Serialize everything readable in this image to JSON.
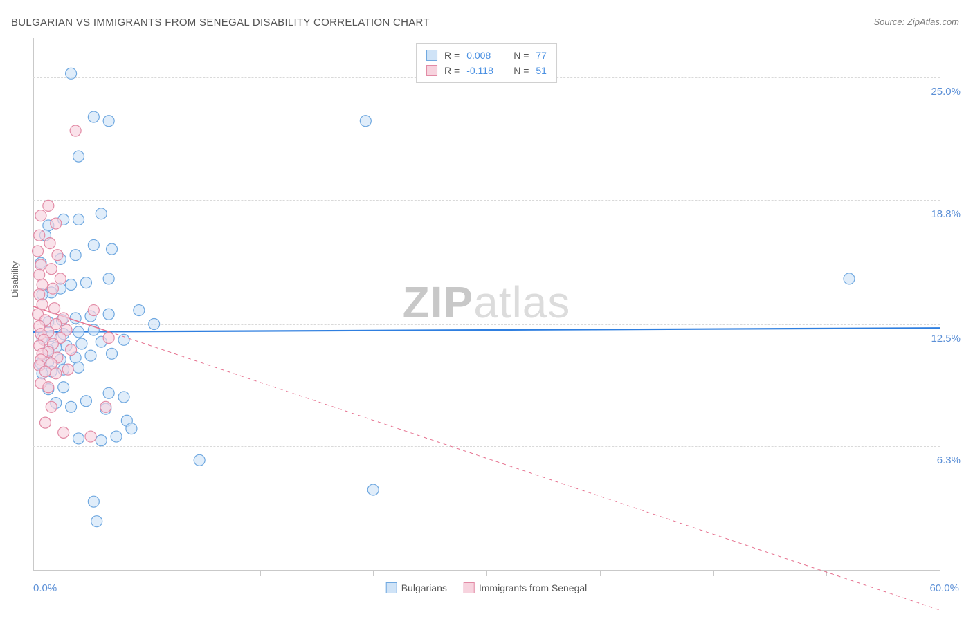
{
  "title": "BULGARIAN VS IMMIGRANTS FROM SENEGAL DISABILITY CORRELATION CHART",
  "source": "Source: ZipAtlas.com",
  "y_axis_label": "Disability",
  "watermark_bold": "ZIP",
  "watermark_light": "atlas",
  "chart": {
    "type": "scatter",
    "background_color": "#ffffff",
    "grid_color": "#d9d9d9",
    "axis_color": "#c9c9c9",
    "tick_label_color": "#5b8fd6",
    "xlim": [
      0,
      60
    ],
    "ylim": [
      0,
      27
    ],
    "x_start_label": "0.0%",
    "x_end_label": "60.0%",
    "y_ticks": [
      {
        "val": 6.3,
        "label": "6.3%"
      },
      {
        "val": 12.5,
        "label": "12.5%"
      },
      {
        "val": 18.8,
        "label": "18.8%"
      },
      {
        "val": 25.0,
        "label": "25.0%"
      }
    ],
    "x_tick_positions": [
      7.5,
      15,
      22.5,
      30,
      37.5,
      45,
      52.5
    ],
    "marker_radius": 8,
    "marker_stroke_width": 1.2,
    "series": [
      {
        "name": "Bulgarians",
        "fill": "#cfe3f7",
        "stroke": "#6fa8e0",
        "fill_opacity": 0.65,
        "reg_line_color": "#2f7fe0",
        "reg_line_width": 2.2,
        "reg_solid_to_x": 60,
        "R": "0.008",
        "N": "77",
        "reg_y_start": 12.1,
        "reg_y_end": 12.3,
        "points": [
          [
            2.5,
            25.2
          ],
          [
            4.0,
            23.0
          ],
          [
            5.0,
            22.8
          ],
          [
            3.0,
            21.0
          ],
          [
            22.0,
            22.8
          ],
          [
            4.5,
            18.1
          ],
          [
            3.0,
            17.8
          ],
          [
            2.0,
            17.8
          ],
          [
            1.0,
            17.5
          ],
          [
            0.8,
            17.0
          ],
          [
            5.2,
            16.3
          ],
          [
            4.0,
            16.5
          ],
          [
            2.8,
            16.0
          ],
          [
            1.8,
            15.8
          ],
          [
            0.5,
            15.6
          ],
          [
            5.0,
            14.8
          ],
          [
            3.5,
            14.6
          ],
          [
            2.5,
            14.5
          ],
          [
            1.8,
            14.3
          ],
          [
            1.2,
            14.1
          ],
          [
            0.6,
            14.0
          ],
          [
            54.0,
            14.8
          ],
          [
            7.0,
            13.2
          ],
          [
            5.0,
            13.0
          ],
          [
            3.8,
            12.9
          ],
          [
            2.8,
            12.8
          ],
          [
            1.9,
            12.7
          ],
          [
            1.0,
            12.6
          ],
          [
            8.0,
            12.5
          ],
          [
            4.0,
            12.2
          ],
          [
            3.0,
            12.1
          ],
          [
            2.0,
            12.0
          ],
          [
            1.2,
            11.9
          ],
          [
            0.6,
            11.8
          ],
          [
            6.0,
            11.7
          ],
          [
            4.5,
            11.6
          ],
          [
            3.2,
            11.5
          ],
          [
            2.2,
            11.4
          ],
          [
            1.5,
            11.3
          ],
          [
            1.0,
            11.2
          ],
          [
            5.2,
            11.0
          ],
          [
            3.8,
            10.9
          ],
          [
            2.8,
            10.8
          ],
          [
            1.8,
            10.7
          ],
          [
            1.0,
            10.6
          ],
          [
            0.5,
            10.5
          ],
          [
            3.0,
            10.3
          ],
          [
            2.0,
            10.2
          ],
          [
            1.2,
            10.1
          ],
          [
            0.6,
            10.0
          ],
          [
            6.0,
            8.8
          ],
          [
            2.0,
            9.3
          ],
          [
            1.0,
            9.2
          ],
          [
            5.0,
            9.0
          ],
          [
            3.5,
            8.6
          ],
          [
            4.8,
            8.2
          ],
          [
            2.5,
            8.3
          ],
          [
            1.5,
            8.5
          ],
          [
            6.2,
            7.6
          ],
          [
            5.5,
            6.8
          ],
          [
            3.0,
            6.7
          ],
          [
            4.5,
            6.6
          ],
          [
            6.5,
            7.2
          ],
          [
            11.0,
            5.6
          ],
          [
            4.0,
            3.5
          ],
          [
            4.2,
            2.5
          ],
          [
            22.5,
            4.1
          ]
        ]
      },
      {
        "name": "Immigrants from Senegal",
        "fill": "#f7d3de",
        "stroke": "#e28aa5",
        "fill_opacity": 0.65,
        "reg_line_color": "#e6718f",
        "reg_line_width": 1.6,
        "reg_solid_to_x": 5,
        "R": "-0.118",
        "N": "51",
        "reg_y_start": 13.4,
        "reg_y_end": -2.0,
        "points": [
          [
            2.8,
            22.3
          ],
          [
            1.0,
            18.5
          ],
          [
            0.5,
            18.0
          ],
          [
            1.5,
            17.6
          ],
          [
            0.4,
            17.0
          ],
          [
            1.1,
            16.6
          ],
          [
            0.3,
            16.2
          ],
          [
            1.6,
            16.0
          ],
          [
            0.5,
            15.5
          ],
          [
            1.2,
            15.3
          ],
          [
            0.4,
            15.0
          ],
          [
            1.8,
            14.8
          ],
          [
            0.6,
            14.5
          ],
          [
            1.3,
            14.3
          ],
          [
            0.4,
            14.0
          ],
          [
            4.0,
            13.2
          ],
          [
            0.6,
            13.5
          ],
          [
            1.4,
            13.3
          ],
          [
            0.3,
            13.0
          ],
          [
            2.0,
            12.8
          ],
          [
            0.8,
            12.7
          ],
          [
            1.5,
            12.5
          ],
          [
            0.4,
            12.4
          ],
          [
            2.2,
            12.2
          ],
          [
            1.0,
            12.1
          ],
          [
            0.5,
            12.0
          ],
          [
            1.8,
            11.8
          ],
          [
            0.7,
            11.7
          ],
          [
            1.3,
            11.5
          ],
          [
            0.4,
            11.4
          ],
          [
            2.5,
            11.2
          ],
          [
            1.0,
            11.1
          ],
          [
            0.6,
            11.0
          ],
          [
            1.6,
            10.8
          ],
          [
            0.5,
            10.7
          ],
          [
            1.2,
            10.5
          ],
          [
            0.4,
            10.4
          ],
          [
            2.3,
            10.2
          ],
          [
            0.8,
            10.1
          ],
          [
            1.5,
            10.0
          ],
          [
            5.0,
            11.8
          ],
          [
            0.5,
            9.5
          ],
          [
            1.0,
            9.3
          ],
          [
            1.2,
            8.3
          ],
          [
            4.8,
            8.3
          ],
          [
            2.0,
            7.0
          ],
          [
            0.8,
            7.5
          ],
          [
            3.8,
            6.8
          ]
        ]
      }
    ],
    "bottom_legend": [
      {
        "label": "Bulgarians",
        "fill": "#cfe3f7",
        "stroke": "#6fa8e0"
      },
      {
        "label": "Immigrants from Senegal",
        "fill": "#f7d3de",
        "stroke": "#e28aa5"
      }
    ]
  }
}
